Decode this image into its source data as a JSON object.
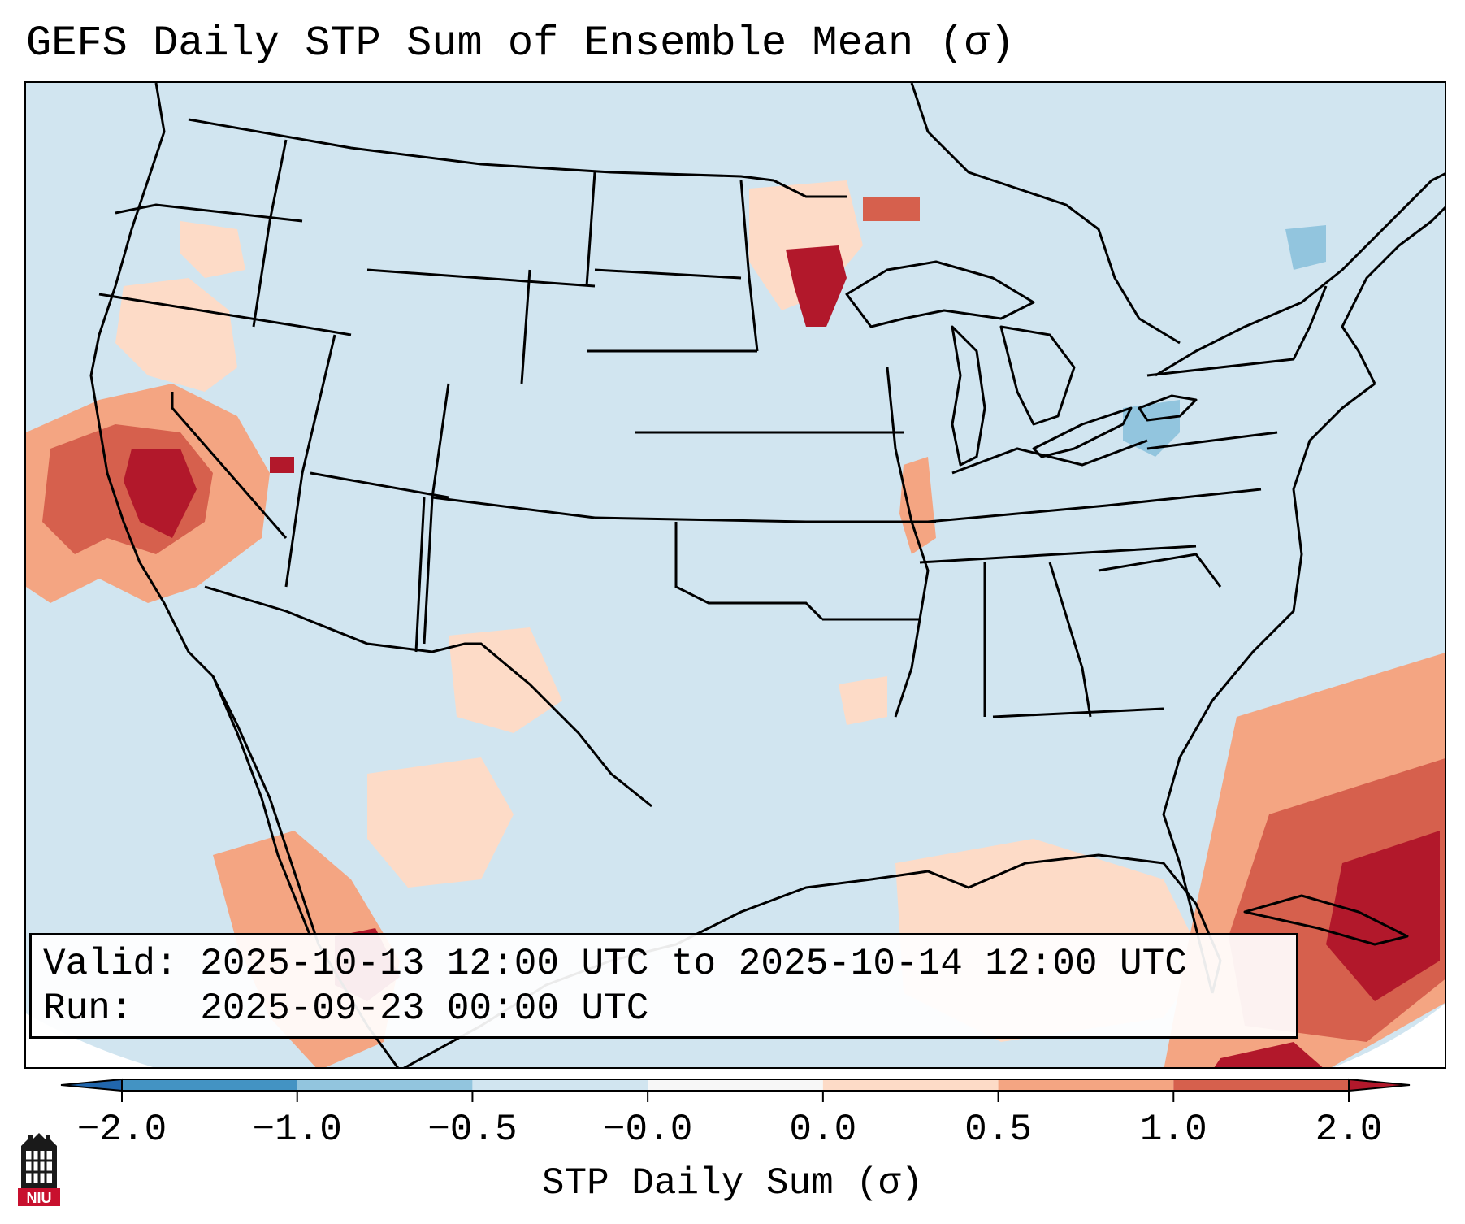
{
  "title": "GEFS Daily STP Sum of Ensemble Mean (σ)",
  "info": {
    "valid_label": "Valid:",
    "valid_value": "2025-10-13 12:00 UTC to 2025-10-14 12:00 UTC",
    "run_label": "Run:",
    "run_value": "2025-09-23 00:00 UTC"
  },
  "colorbar": {
    "label": "STP Daily Sum (σ)",
    "ticks": [
      "−2.0",
      "−1.0",
      "−0.5",
      "−0.0",
      "0.0",
      "0.5",
      "1.0",
      "2.0"
    ],
    "colors": [
      "#4393c3",
      "#92c5de",
      "#d1e5f0",
      "#f7f7f7",
      "#fddbc7",
      "#f4a582",
      "#d6604d",
      "#b2182b"
    ],
    "under_color": "#2166ac",
    "over_color": "#b2182b"
  },
  "map": {
    "background_color": "#d1e5f0",
    "region": "Contiguous United States"
  },
  "logo": {
    "text": "NIU"
  }
}
